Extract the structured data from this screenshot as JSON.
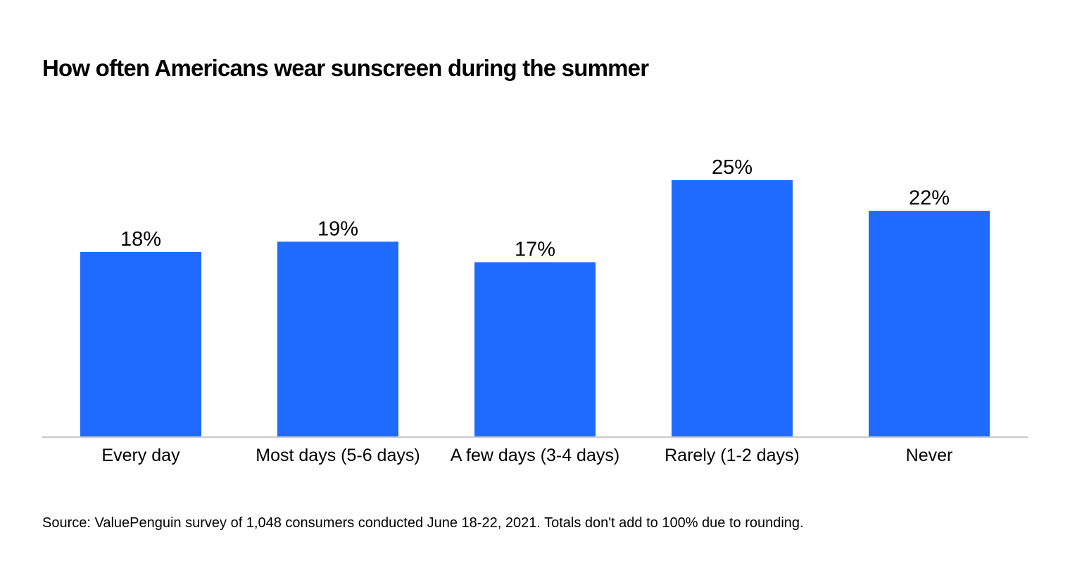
{
  "chart_data": {
    "type": "bar",
    "title": "How often Americans wear sunscreen during the summer",
    "categories": [
      "Every day",
      "Most days (5-6 days)",
      "A few days (3-4 days)",
      "Rarely (1-2 days)",
      "Never"
    ],
    "values": [
      18,
      19,
      17,
      25,
      22
    ],
    "value_labels": [
      "18%",
      "19%",
      "17%",
      "25%",
      "22%"
    ],
    "unit": "%",
    "xlabel": "",
    "ylabel": "",
    "ylim": [
      0,
      25
    ],
    "grid": false,
    "legend": "none",
    "bar_color": "#1F6BFF",
    "axis_color": "#C8C8C8"
  },
  "footer": {
    "source": "Source: ValuePenguin survey of 1,048 consumers conducted June 18-22, 2021. Totals don't add to 100% due to rounding."
  }
}
